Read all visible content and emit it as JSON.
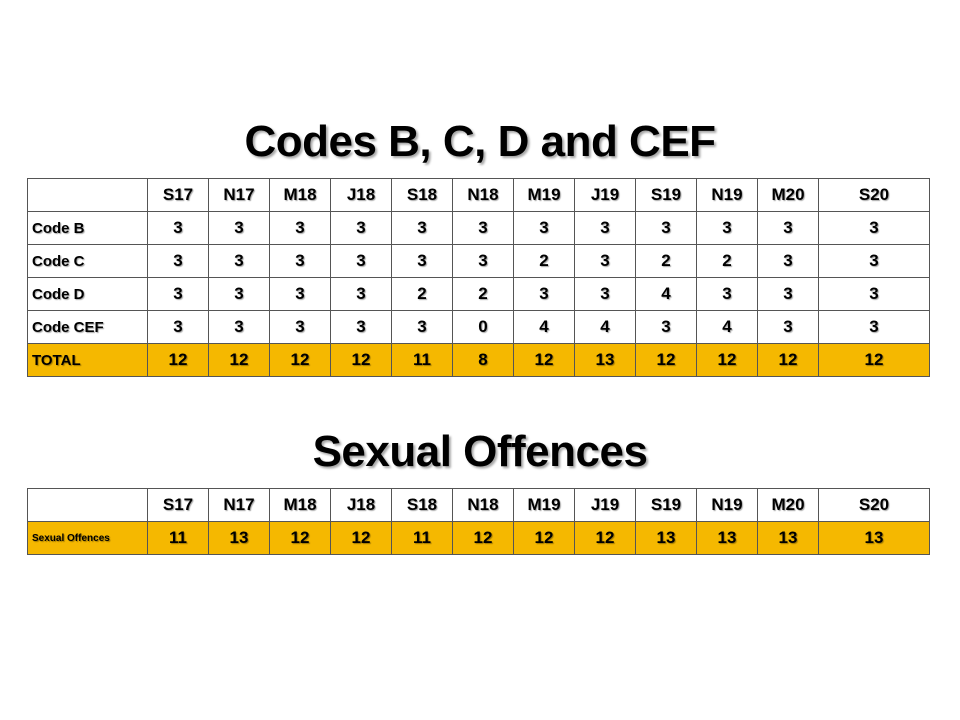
{
  "section1": {
    "title": "Codes B, C, D and CEF",
    "columns": [
      "S17",
      "N17",
      "M18",
      "J18",
      "S18",
      "N18",
      "M19",
      "J19",
      "S19",
      "N19",
      "M20",
      "S20"
    ],
    "rows": [
      {
        "label": "Code B",
        "values": [
          "3",
          "3",
          "3",
          "3",
          "3",
          "3",
          "3",
          "3",
          "3",
          "3",
          "3",
          "3"
        ]
      },
      {
        "label": "Code C",
        "values": [
          "3",
          "3",
          "3",
          "3",
          "3",
          "3",
          "2",
          "3",
          "2",
          "2",
          "3",
          "3"
        ]
      },
      {
        "label": "Code D",
        "values": [
          "3",
          "3",
          "3",
          "3",
          "2",
          "2",
          "3",
          "3",
          "4",
          "3",
          "3",
          "3"
        ]
      },
      {
        "label": "Code CEF",
        "values": [
          "3",
          "3",
          "3",
          "3",
          "3",
          "0",
          "4",
          "4",
          "3",
          "4",
          "3",
          "3"
        ]
      },
      {
        "label": "TOTAL",
        "values": [
          "12",
          "12",
          "12",
          "12",
          "11",
          "8",
          "12",
          "13",
          "12",
          "12",
          "12",
          "12"
        ]
      }
    ]
  },
  "section2": {
    "title": "Sexual Offences",
    "columns": [
      "S17",
      "N17",
      "M18",
      "J18",
      "S18",
      "N18",
      "M19",
      "J19",
      "S19",
      "N19",
      "M20",
      "S20"
    ],
    "rows": [
      {
        "label": "Sexual Offences",
        "values": [
          "11",
          "13",
          "12",
          "12",
          "11",
          "12",
          "12",
          "12",
          "13",
          "13",
          "13",
          "13"
        ]
      }
    ]
  },
  "colors": {
    "highlight": "#f5b800",
    "border": "#555555"
  }
}
